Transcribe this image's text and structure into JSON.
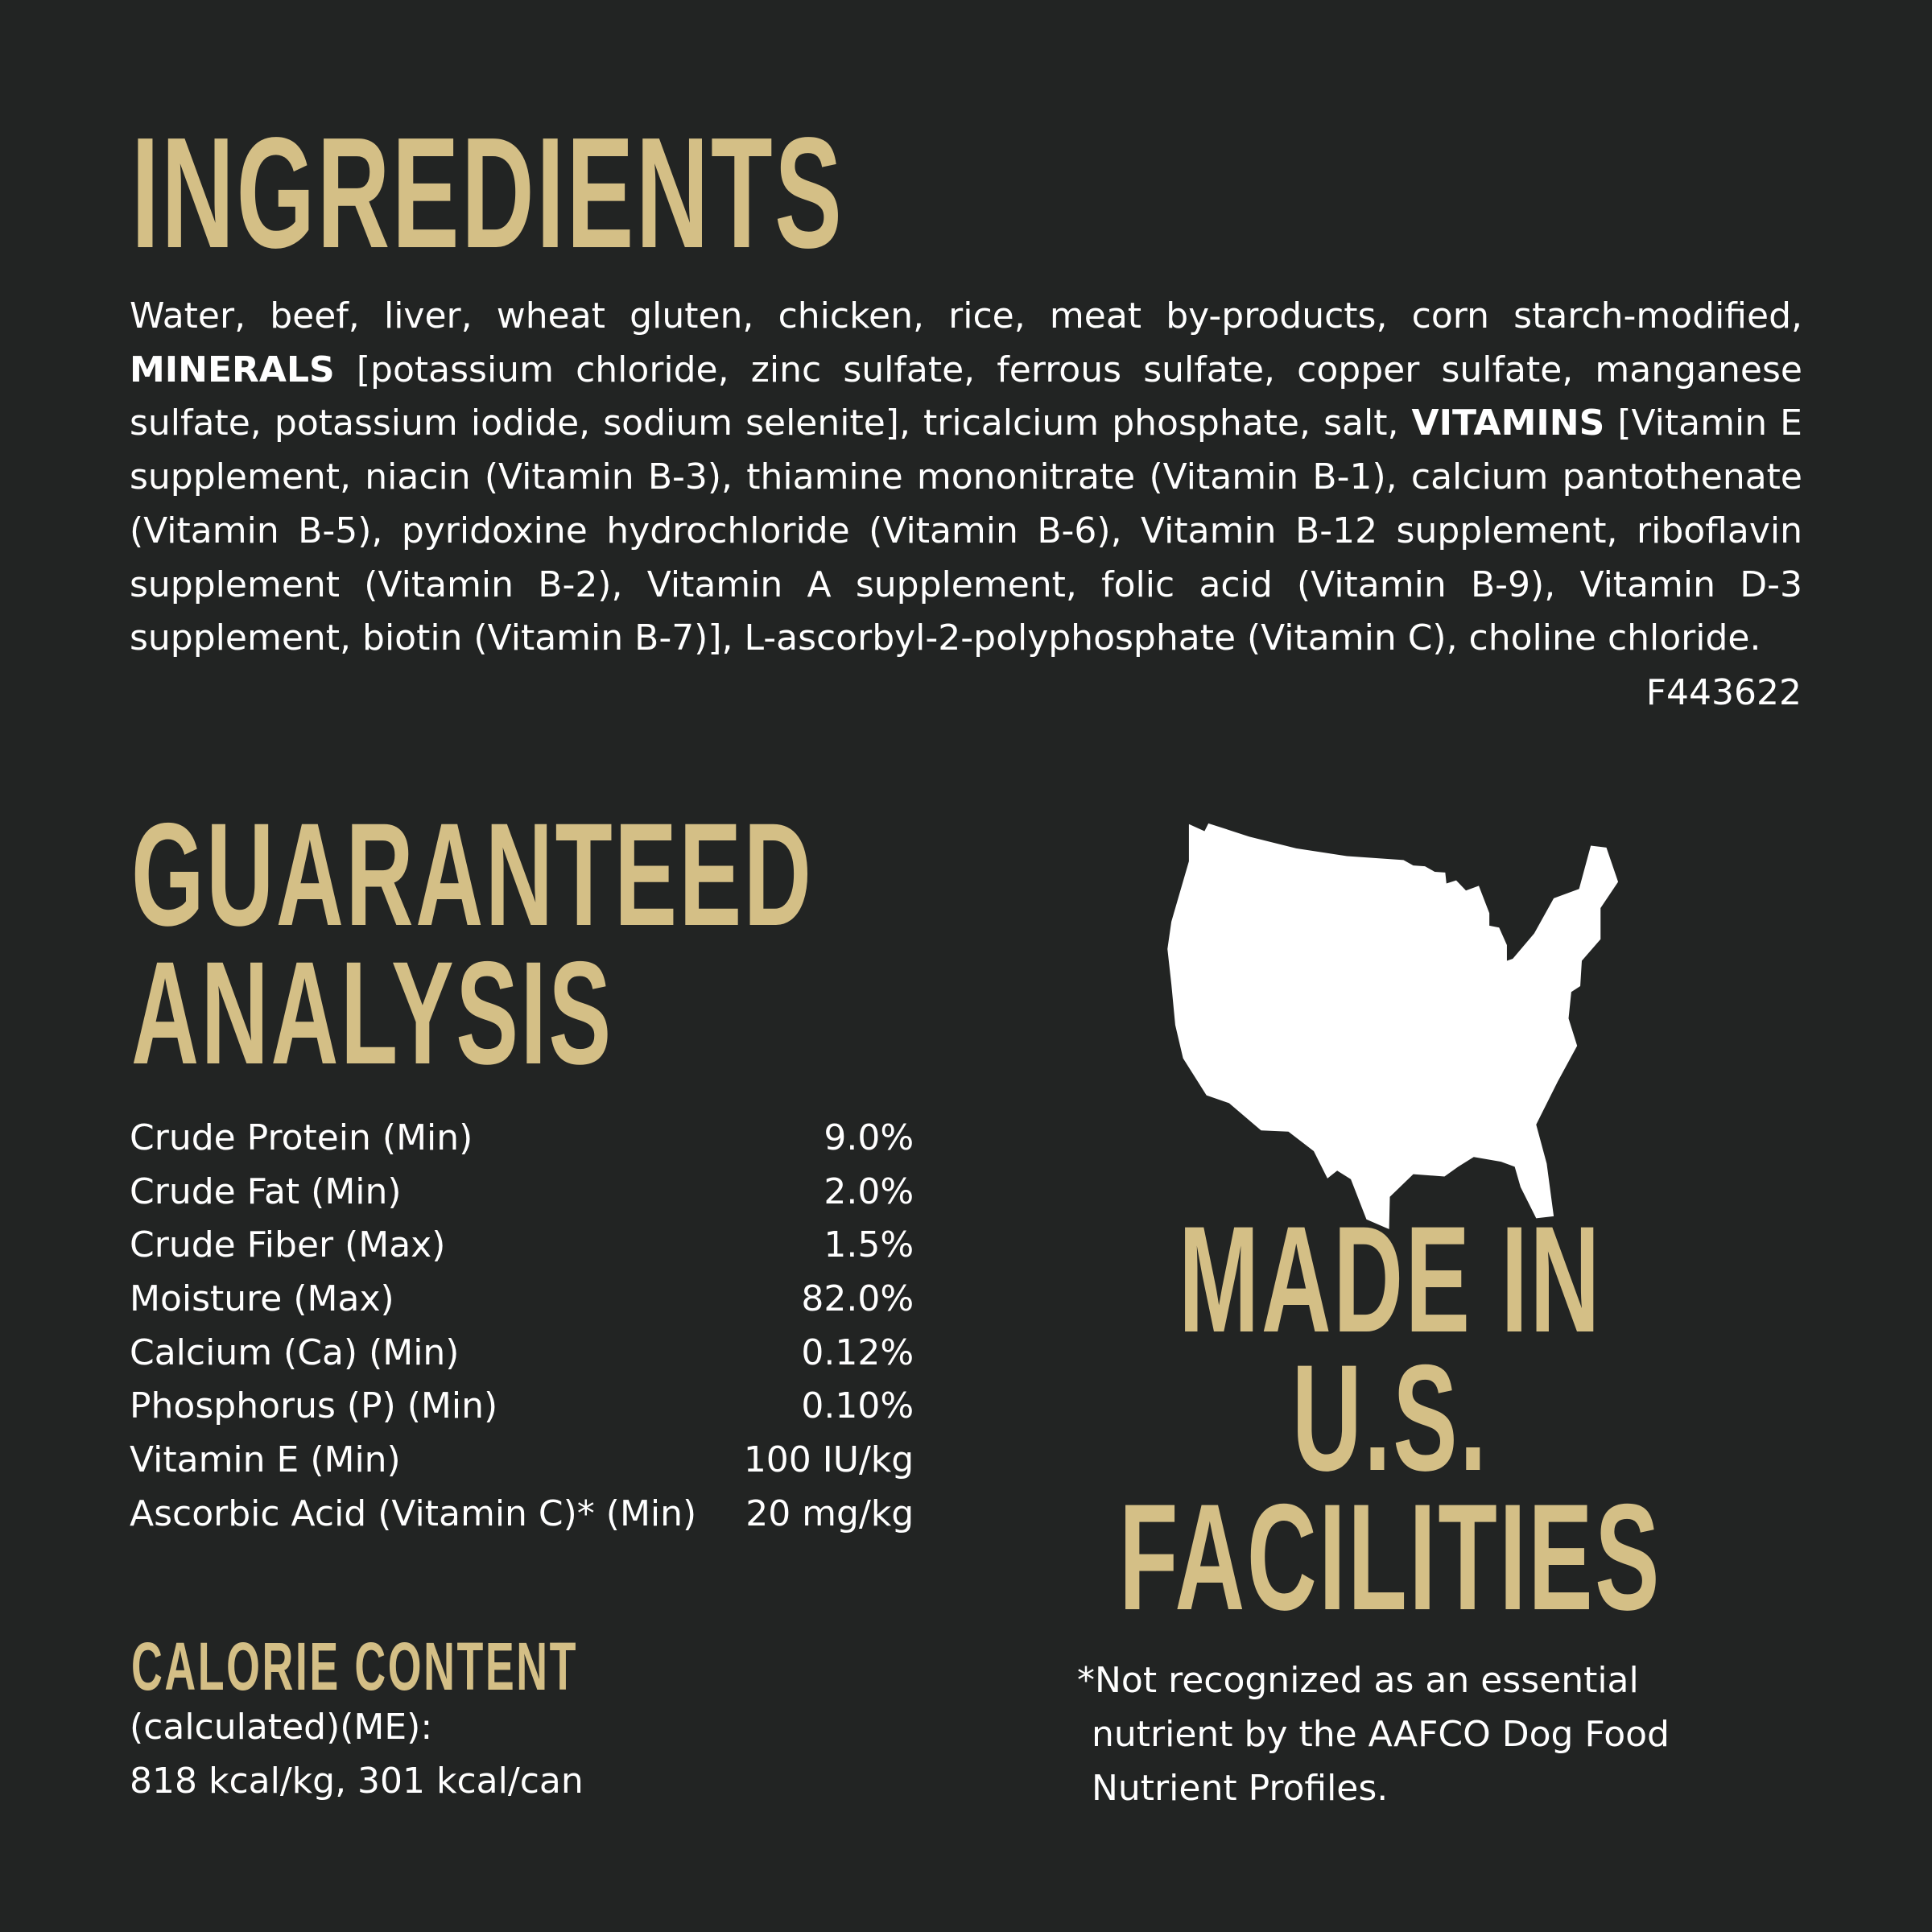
{
  "colors": {
    "background": "#222423",
    "accent": "#d4bf86",
    "text": "#ffffff"
  },
  "ingredients": {
    "heading": "INGREDIENTS",
    "part1": "Water, beef, liver, wheat gluten, chicken, rice, meat by-products, corn starch-modified,",
    "minerals_label": "MINERALS",
    "part2": "[potassium chloride, zinc sulfate, ferrous sulfate, copper sulfate, manganese sulfate, potassium iodide, sodium selenite], tricalcium phosphate, salt,",
    "vitamins_label": "VITAMINS",
    "part3": "[Vitamin E supplement, niacin (Vitamin B-3), thiamine mononitrate (Vitamin B-1), calcium pantothenate (Vitamin B-5), pyridoxine hydrochloride (Vitamin B-6), Vitamin B-12 supplement, riboflavin supplement (Vitamin B-2), Vitamin A supplement, folic acid (Vitamin B-9), Vitamin D-3 supplement, biotin (Vitamin B-7)], L-ascorbyl-2-polyphosphate (Vitamin C), choline chloride.",
    "code": "F443622"
  },
  "analysis": {
    "heading_line1": "GUARANTEED",
    "heading_line2": "ANALYSIS",
    "rows": [
      {
        "label": "Crude Protein (Min)",
        "value": "9.0%"
      },
      {
        "label": "Crude Fat (Min)",
        "value": "2.0%"
      },
      {
        "label": "Crude Fiber (Max)",
        "value": "1.5%"
      },
      {
        "label": "Moisture (Max)",
        "value": "82.0%"
      },
      {
        "label": "Calcium (Ca) (Min)",
        "value": "0.12%"
      },
      {
        "label": "Phosphorus (P) (Min)",
        "value": "0.10%"
      },
      {
        "label": "Vitamin E (Min)",
        "value": "100 IU/kg"
      },
      {
        "label": "Ascorbic Acid (Vitamin C)* (Min)",
        "value": "20 mg/kg"
      }
    ]
  },
  "calorie": {
    "heading": "CALORIE CONTENT",
    "line1": "(calculated)(ME):",
    "line2": "818 kcal/kg, 301 kcal/can"
  },
  "made_in": {
    "icon": "usa-map-icon",
    "line1": "MADE IN",
    "line2": "U.S.",
    "line3": "FACILITIES"
  },
  "footnote": {
    "line1": "*Not recognized as an essential",
    "line2": "nutrient by the AAFCO Dog Food",
    "line3": "Nutrient Profiles."
  }
}
